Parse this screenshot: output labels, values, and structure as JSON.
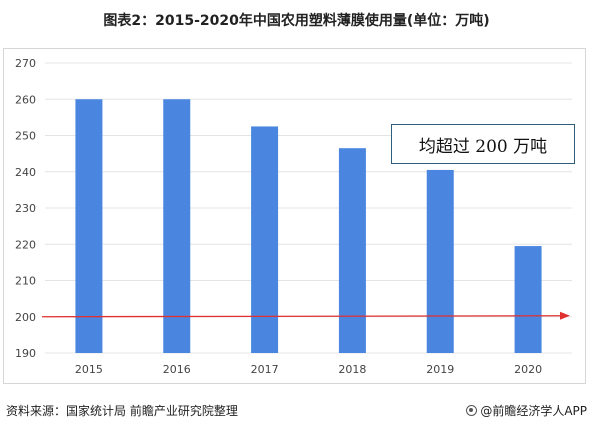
{
  "title": "图表2：2015-2020年中国农用塑料薄膜使用量(单位：万吨)",
  "callout": "均超过 200 万吨",
  "source": "资料来源：国家统计局 前瞻产业研究院整理",
  "brand": "@前瞻经济学人APP",
  "colors": {
    "bar": "#4a86e0",
    "arrow": "#e03030",
    "grid": "#e4e4e4"
  },
  "chart_data": {
    "type": "bar",
    "categories": [
      "2015",
      "2016",
      "2017",
      "2018",
      "2019",
      "2020"
    ],
    "values": [
      260,
      260,
      252.5,
      246.5,
      240.5,
      219.5
    ],
    "yticks": [
      190,
      200,
      210,
      220,
      230,
      240,
      250,
      260,
      270
    ],
    "ylim": [
      190,
      270
    ],
    "grid": true,
    "reference_arrow": {
      "y": 200
    }
  }
}
